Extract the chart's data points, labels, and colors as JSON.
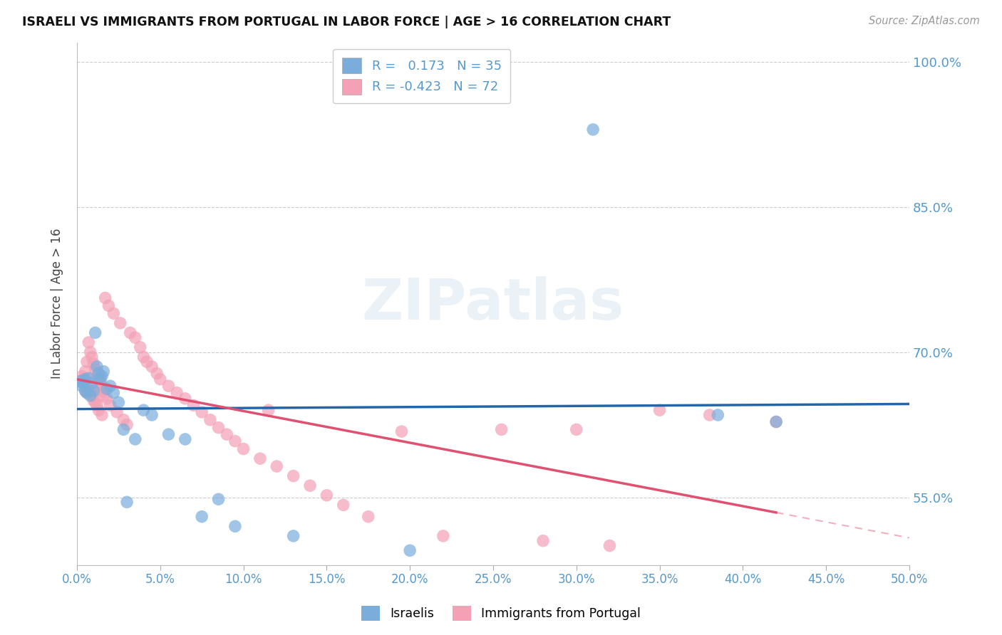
{
  "title": "ISRAELI VS IMMIGRANTS FROM PORTUGAL IN LABOR FORCE | AGE > 16 CORRELATION CHART",
  "source": "Source: ZipAtlas.com",
  "ylabel": "In Labor Force | Age > 16",
  "xlim": [
    0.0,
    0.5
  ],
  "ylim": [
    0.48,
    1.02
  ],
  "ytick_vals": [
    0.55,
    0.7,
    0.85,
    1.0
  ],
  "ytick_labels": [
    "55.0%",
    "70.0%",
    "85.0%",
    "100.0%"
  ],
  "xtick_vals": [
    0.0,
    0.05,
    0.1,
    0.15,
    0.2,
    0.25,
    0.3,
    0.35,
    0.4,
    0.45,
    0.5
  ],
  "xtick_labels": [
    "0.0%",
    "5.0%",
    "10.0%",
    "15.0%",
    "20.0%",
    "25.0%",
    "30.0%",
    "35.0%",
    "40.0%",
    "45.0%",
    "50.0%"
  ],
  "israeli_R": 0.173,
  "israeli_N": 35,
  "portugal_R": -0.423,
  "portugal_N": 72,
  "israeli_color": "#7aaddc",
  "portugal_color": "#f4a0b5",
  "israeli_line_color": "#2266aa",
  "portugal_line_color": "#e05070",
  "watermark": "ZIPatlas",
  "israeli_points_x": [
    0.002,
    0.003,
    0.004,
    0.005,
    0.005,
    0.006,
    0.007,
    0.008,
    0.009,
    0.01,
    0.011,
    0.012,
    0.013,
    0.014,
    0.015,
    0.016,
    0.018,
    0.02,
    0.022,
    0.025,
    0.028,
    0.03,
    0.035,
    0.04,
    0.045,
    0.055,
    0.065,
    0.075,
    0.085,
    0.095,
    0.13,
    0.2,
    0.31,
    0.385,
    0.42
  ],
  "israeli_points_y": [
    0.67,
    0.665,
    0.668,
    0.672,
    0.66,
    0.658,
    0.673,
    0.655,
    0.668,
    0.66,
    0.72,
    0.685,
    0.678,
    0.673,
    0.675,
    0.68,
    0.662,
    0.665,
    0.658,
    0.648,
    0.62,
    0.545,
    0.61,
    0.64,
    0.635,
    0.615,
    0.61,
    0.53,
    0.548,
    0.52,
    0.51,
    0.495,
    0.93,
    0.635,
    0.628
  ],
  "portugal_points_x": [
    0.002,
    0.003,
    0.004,
    0.004,
    0.005,
    0.005,
    0.006,
    0.006,
    0.007,
    0.007,
    0.008,
    0.008,
    0.009,
    0.009,
    0.01,
    0.01,
    0.011,
    0.011,
    0.012,
    0.012,
    0.013,
    0.013,
    0.014,
    0.014,
    0.015,
    0.015,
    0.016,
    0.016,
    0.017,
    0.018,
    0.019,
    0.02,
    0.022,
    0.024,
    0.026,
    0.028,
    0.03,
    0.032,
    0.035,
    0.038,
    0.04,
    0.042,
    0.045,
    0.048,
    0.05,
    0.055,
    0.06,
    0.065,
    0.07,
    0.075,
    0.08,
    0.085,
    0.09,
    0.095,
    0.1,
    0.11,
    0.115,
    0.12,
    0.13,
    0.14,
    0.15,
    0.16,
    0.175,
    0.195,
    0.22,
    0.255,
    0.28,
    0.3,
    0.32,
    0.35,
    0.38,
    0.42
  ],
  "portugal_points_y": [
    0.67,
    0.675,
    0.672,
    0.668,
    0.68,
    0.66,
    0.69,
    0.658,
    0.71,
    0.665,
    0.7,
    0.66,
    0.695,
    0.655,
    0.688,
    0.65,
    0.682,
    0.648,
    0.676,
    0.645,
    0.673,
    0.64,
    0.669,
    0.66,
    0.665,
    0.635,
    0.66,
    0.655,
    0.756,
    0.652,
    0.748,
    0.645,
    0.74,
    0.638,
    0.73,
    0.63,
    0.625,
    0.72,
    0.715,
    0.705,
    0.695,
    0.69,
    0.685,
    0.678,
    0.672,
    0.665,
    0.658,
    0.652,
    0.645,
    0.638,
    0.63,
    0.622,
    0.615,
    0.608,
    0.6,
    0.59,
    0.64,
    0.582,
    0.572,
    0.562,
    0.552,
    0.542,
    0.53,
    0.618,
    0.51,
    0.62,
    0.505,
    0.62,
    0.5,
    0.64,
    0.635,
    0.628
  ]
}
